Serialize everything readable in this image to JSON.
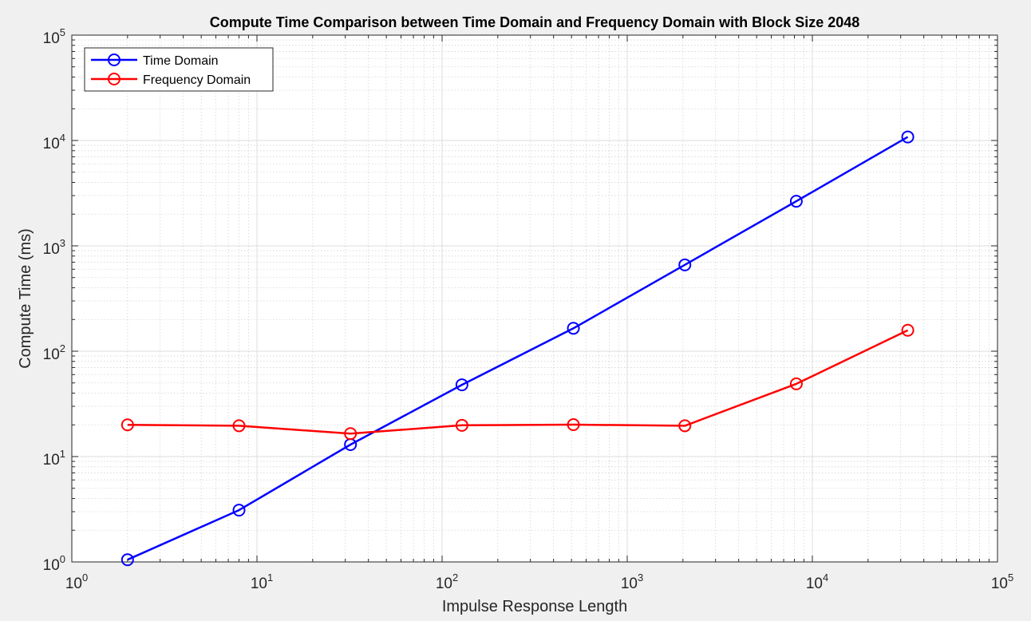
{
  "chart_data": {
    "type": "line",
    "title": "Compute Time Comparison between Time Domain and Frequency Domain with Block Size 2048",
    "xlabel": "Impulse Response Length",
    "ylabel": "Compute Time (ms)",
    "xscale": "log",
    "yscale": "log",
    "xlim": [
      1,
      100000
    ],
    "ylim": [
      1,
      100000
    ],
    "x_ticks": [
      1,
      10,
      100,
      1000,
      10000,
      100000
    ],
    "x_tick_labels": [
      {
        "base": "10",
        "exp": "0"
      },
      {
        "base": "10",
        "exp": "1"
      },
      {
        "base": "10",
        "exp": "2"
      },
      {
        "base": "10",
        "exp": "3"
      },
      {
        "base": "10",
        "exp": "4"
      },
      {
        "base": "10",
        "exp": "5"
      }
    ],
    "y_ticks": [
      1,
      10,
      100,
      1000,
      10000,
      100000
    ],
    "y_tick_labels": [
      {
        "base": "10",
        "exp": "0"
      },
      {
        "base": "10",
        "exp": "1"
      },
      {
        "base": "10",
        "exp": "2"
      },
      {
        "base": "10",
        "exp": "3"
      },
      {
        "base": "10",
        "exp": "4"
      },
      {
        "base": "10",
        "exp": "5"
      }
    ],
    "grid": true,
    "minor_grid": true,
    "legend_position": "top-left",
    "x": [
      2,
      8,
      32,
      128,
      512,
      2048,
      8192,
      32768
    ],
    "series": [
      {
        "name": "Time Domain",
        "color": "#0000ff",
        "marker": "circle",
        "values": [
          1.05,
          3.1,
          13,
          48,
          165,
          660,
          2650,
          10800
        ]
      },
      {
        "name": "Frequency Domain",
        "color": "#ff0000",
        "marker": "circle",
        "values": [
          20,
          19.6,
          16.5,
          19.8,
          20.1,
          19.6,
          49,
          158
        ]
      }
    ]
  }
}
